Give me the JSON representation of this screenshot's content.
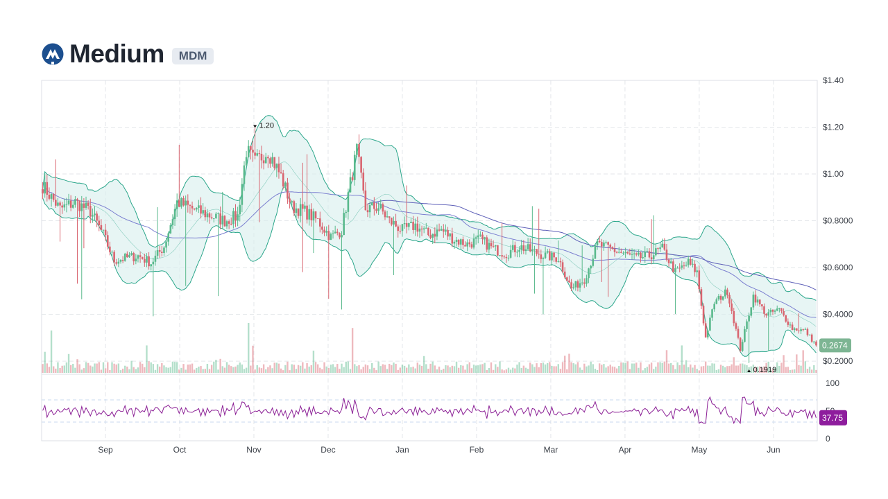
{
  "header": {
    "name": "Medium",
    "ticker": "MDM",
    "logo_icon": "medium-logo-icon",
    "logo_color": "#1c4f8f"
  },
  "colors": {
    "up": "#59b98c",
    "down": "#d9646f",
    "band_line": "#2aa68a",
    "band_fill": "#d7efec",
    "ma_long": "#5d5fb8",
    "ma_mid": "#7b7fd0",
    "rsi_line": "#8b1f95",
    "price_tag": "#7db593",
    "rsi_tag": "#8e1d9d"
  },
  "chart_data": {
    "type": "candlestick",
    "price_axis": {
      "ticks": [
        "$1.40",
        "$1.20",
        "$1.00",
        "$0.8000",
        "$0.6000",
        "$0.4000",
        "$0.2000"
      ],
      "tick_values": [
        1.4,
        1.2,
        1.0,
        0.8,
        0.6,
        0.4,
        0.2
      ],
      "range": [
        0.15,
        1.4
      ]
    },
    "time_axis": {
      "labels": [
        "Sep",
        "Oct",
        "Nov",
        "Dec",
        "Jan",
        "Feb",
        "Mar",
        "Apr",
        "May",
        "Jun"
      ]
    },
    "last_price_label": "0.2674",
    "last_price": 0.2674,
    "max_annotation": {
      "label": "1.20",
      "value": 1.2
    },
    "min_annotation": {
      "label": "0.1919",
      "value": 0.1919
    },
    "close_anchors": [
      [
        0,
        0.95
      ],
      [
        8,
        0.85
      ],
      [
        15,
        0.88
      ],
      [
        22,
        0.84
      ],
      [
        28,
        0.74
      ],
      [
        33,
        0.63
      ],
      [
        38,
        0.64
      ],
      [
        44,
        0.65
      ],
      [
        50,
        0.62
      ],
      [
        56,
        0.69
      ],
      [
        62,
        0.88
      ],
      [
        67,
        0.86
      ],
      [
        72,
        0.84
      ],
      [
        78,
        0.82
      ],
      [
        84,
        0.8
      ],
      [
        90,
        0.82
      ],
      [
        94,
        1.1
      ],
      [
        98,
        1.05
      ],
      [
        104,
        1.1
      ],
      [
        110,
        0.99
      ],
      [
        115,
        0.86
      ],
      [
        121,
        0.84
      ],
      [
        127,
        0.8
      ],
      [
        133,
        0.73
      ],
      [
        138,
        0.76
      ],
      [
        142,
        0.96
      ],
      [
        145,
        1.1
      ],
      [
        149,
        0.85
      ],
      [
        155,
        0.86
      ],
      [
        160,
        0.8
      ],
      [
        166,
        0.76
      ],
      [
        172,
        0.78
      ],
      [
        178,
        0.74
      ],
      [
        184,
        0.76
      ],
      [
        190,
        0.72
      ],
      [
        196,
        0.7
      ],
      [
        202,
        0.72
      ],
      [
        208,
        0.68
      ],
      [
        214,
        0.66
      ],
      [
        220,
        0.69
      ],
      [
        226,
        0.67
      ],
      [
        232,
        0.65
      ],
      [
        238,
        0.64
      ],
      [
        244,
        0.51
      ],
      [
        250,
        0.55
      ],
      [
        256,
        0.7
      ],
      [
        262,
        0.68
      ],
      [
        268,
        0.66
      ],
      [
        274,
        0.64
      ],
      [
        280,
        0.65
      ],
      [
        286,
        0.68
      ],
      [
        292,
        0.58
      ],
      [
        298,
        0.62
      ],
      [
        302,
        0.58
      ],
      [
        306,
        0.3
      ],
      [
        310,
        0.45
      ],
      [
        316,
        0.5
      ],
      [
        322,
        0.25
      ],
      [
        328,
        0.48
      ],
      [
        334,
        0.4
      ],
      [
        340,
        0.42
      ],
      [
        346,
        0.34
      ],
      [
        352,
        0.33
      ],
      [
        357,
        0.2674
      ]
    ],
    "volume_spikes": [
      [
        4,
        0.85
      ],
      [
        48,
        0.55
      ],
      [
        95,
        1.0
      ],
      [
        143,
        0.9
      ],
      [
        295,
        0.55
      ]
    ],
    "rsi": {
      "last_label": "37.75",
      "last_value": 37.75,
      "axis_ticks": [
        "100",
        "50",
        "0"
      ],
      "axis_values": [
        100,
        50,
        0
      ],
      "upper_band": 70,
      "lower_band": 30
    }
  }
}
